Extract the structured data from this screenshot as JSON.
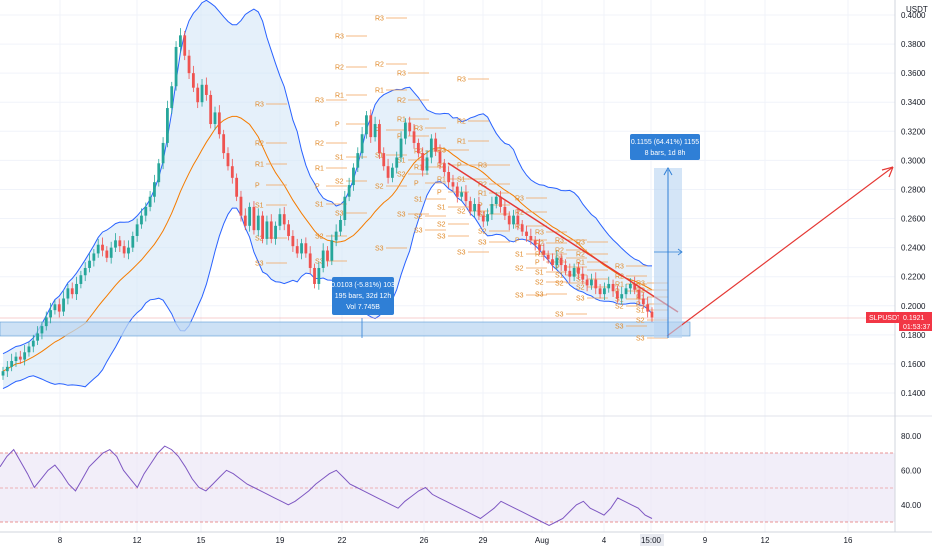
{
  "chart_data": {
    "type": "candlestick",
    "symbol_tag": "SLPUSDT",
    "currency": "USDT",
    "last_price": "0.1921",
    "countdown": "01:53:37",
    "y_axis_ticks": [
      "0.4000",
      "0.3800",
      "0.3600",
      "0.3400",
      "0.3200",
      "0.3000",
      "0.2800",
      "0.2600",
      "0.2400",
      "0.2200",
      "0.2000",
      "0.1800",
      "0.1600",
      "0.1400"
    ],
    "x_axis_ticks": [
      "8",
      "12",
      "15",
      "19",
      "22",
      "26",
      "29",
      "Aug",
      "4",
      "15:00",
      "9",
      "12",
      "16"
    ],
    "rsi_ticks": [
      "80.00",
      "60.00",
      "40.00"
    ],
    "rsi_levels": [
      70,
      50,
      30
    ],
    "measure_up": {
      "line1": "0.1155 (64.41%) 1155",
      "line2": "8 bars, 1d 8h"
    },
    "measure_down": {
      "line1": "0.0103 (-5.81%) 103",
      "line2": "195 bars, 32d 12h",
      "line3": "Vol 7.745B"
    },
    "pivot_labels": [
      "R3",
      "R2",
      "R1",
      "P",
      "S1",
      "S2",
      "S3"
    ],
    "candles_close": [
      0.155,
      0.158,
      0.162,
      0.165,
      0.163,
      0.168,
      0.172,
      0.176,
      0.181,
      0.186,
      0.192,
      0.197,
      0.201,
      0.196,
      0.205,
      0.212,
      0.208,
      0.215,
      0.221,
      0.226,
      0.231,
      0.236,
      0.242,
      0.238,
      0.233,
      0.24,
      0.245,
      0.241,
      0.236,
      0.24,
      0.248,
      0.256,
      0.262,
      0.268,
      0.275,
      0.285,
      0.298,
      0.312,
      0.336,
      0.351,
      0.378,
      0.386,
      0.372,
      0.36,
      0.35,
      0.34,
      0.352,
      0.345,
      0.325,
      0.333,
      0.318,
      0.305,
      0.296,
      0.288,
      0.275,
      0.262,
      0.255,
      0.268,
      0.252,
      0.262,
      0.246,
      0.258,
      0.246,
      0.255,
      0.263,
      0.256,
      0.248,
      0.241,
      0.236,
      0.243,
      0.236,
      0.226,
      0.215,
      0.226,
      0.238,
      0.231,
      0.245,
      0.251,
      0.259,
      0.275,
      0.283,
      0.295,
      0.305,
      0.318,
      0.331,
      0.316,
      0.325,
      0.305,
      0.296,
      0.288,
      0.295,
      0.302,
      0.315,
      0.326,
      0.32,
      0.312,
      0.305,
      0.293,
      0.302,
      0.315,
      0.306,
      0.298,
      0.292,
      0.285,
      0.282,
      0.275,
      0.278,
      0.272,
      0.265,
      0.27,
      0.262,
      0.258,
      0.263,
      0.27,
      0.275,
      0.268,
      0.262,
      0.256,
      0.262,
      0.256,
      0.251,
      0.248,
      0.245,
      0.242,
      0.238,
      0.235,
      0.232,
      0.228,
      0.233,
      0.228,
      0.224,
      0.22,
      0.226,
      0.222,
      0.218,
      0.214,
      0.218,
      0.212,
      0.208,
      0.212,
      0.215,
      0.21,
      0.205,
      0.208,
      0.212,
      0.215,
      0.211,
      0.205,
      0.201,
      0.196,
      0.192
    ],
    "rsi_values": [
      62,
      68,
      72,
      65,
      58,
      50,
      55,
      60,
      63,
      58,
      52,
      48,
      55,
      62,
      66,
      70,
      72,
      68,
      60,
      55,
      50,
      58,
      64,
      70,
      74,
      72,
      68,
      62,
      55,
      50,
      48,
      52,
      56,
      60,
      58,
      55,
      52,
      50,
      48,
      46,
      44,
      42,
      40,
      42,
      45,
      48,
      52,
      55,
      58,
      60,
      56,
      52,
      50,
      48,
      46,
      44,
      42,
      40,
      38,
      42,
      45,
      48,
      50,
      46,
      44,
      42,
      40,
      38,
      36,
      34,
      32,
      35,
      38,
      42,
      40,
      38,
      36,
      34,
      32,
      30,
      28,
      30,
      32,
      36,
      40,
      42,
      38,
      36,
      34,
      38,
      44,
      42,
      40,
      38,
      34,
      32
    ]
  }
}
